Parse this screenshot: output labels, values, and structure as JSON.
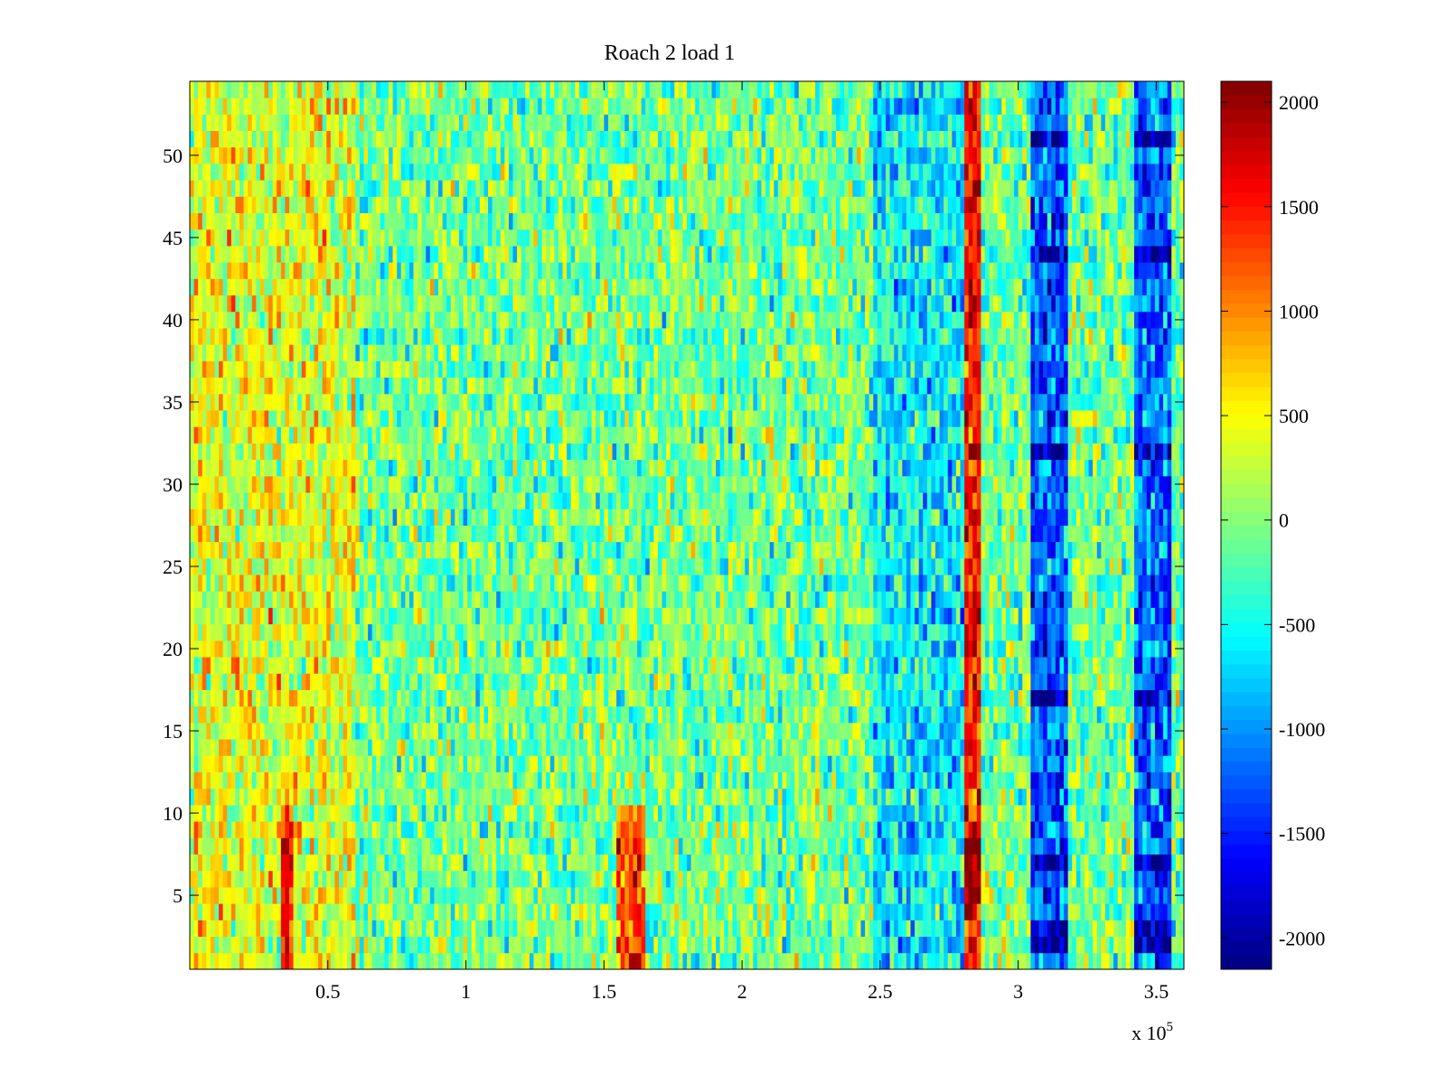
{
  "chart_data": {
    "type": "heatmap",
    "title": "Roach 2 load 1",
    "xlabel": "",
    "ylabel": "",
    "x_exponent_label": "x 10",
    "x_exponent_power": "5",
    "xlim": [
      0,
      360000
    ],
    "ylim": [
      0.5,
      54.5
    ],
    "x_ticks": [
      50000,
      100000,
      150000,
      200000,
      250000,
      300000,
      350000
    ],
    "x_tick_labels": [
      "0.5",
      "1",
      "1.5",
      "2",
      "2.5",
      "3",
      "3.5"
    ],
    "y_ticks": [
      5,
      10,
      15,
      20,
      25,
      30,
      35,
      40,
      45,
      50
    ],
    "y_tick_labels": [
      "5",
      "10",
      "15",
      "20",
      "25",
      "30",
      "35",
      "40",
      "45",
      "50"
    ],
    "rows": 54,
    "colormap": "jet",
    "clim": [
      -2150,
      2100
    ],
    "colorbar_ticks": [
      2000,
      1500,
      1000,
      500,
      0,
      -500,
      -1000,
      -1500,
      -2000
    ],
    "colorbar_tick_labels": [
      "2000",
      "1500",
      "1000",
      "500",
      "0",
      "-500",
      "-1000",
      "-1500",
      "-2000"
    ],
    "grid": false,
    "features": [
      {
        "x_range": [
          0,
          60000
        ],
        "rows": "all",
        "typical_value": 400,
        "description_value": "warm band"
      },
      {
        "x_range": [
          33000,
          38000
        ],
        "rows": [
          1,
          10
        ],
        "typical_value": 1500
      },
      {
        "x_range": [
          155000,
          165000
        ],
        "rows": [
          1,
          10
        ],
        "typical_value": 1300
      },
      {
        "x_range": [
          280000,
          287000
        ],
        "rows": [
          1,
          54
        ],
        "typical_value": 1500
      },
      {
        "x_range": [
          305000,
          318000
        ],
        "rows": [
          1,
          54
        ],
        "typical_value": -1200
      },
      {
        "x_range": [
          342000,
          355000
        ],
        "rows": [
          1,
          54
        ],
        "typical_value": -1200
      },
      {
        "x_range": [
          248000,
          280000
        ],
        "rows": "all",
        "typical_value": -600
      }
    ],
    "strong_cells": [
      {
        "x_range": [
          305000,
          318000
        ],
        "rows": [
          2,
          3
        ],
        "value": -2000
      },
      {
        "x_range": [
          305000,
          318000
        ],
        "rows": [
          7,
          7
        ],
        "value": -2000
      },
      {
        "x_range": [
          305000,
          318000
        ],
        "rows": [
          17,
          17
        ],
        "value": -1900
      },
      {
        "x_range": [
          305000,
          318000
        ],
        "rows": [
          32,
          32
        ],
        "value": -1900
      },
      {
        "x_range": [
          305000,
          318000
        ],
        "rows": [
          44,
          44
        ],
        "value": -1900
      },
      {
        "x_range": [
          305000,
          318000
        ],
        "rows": [
          51,
          51
        ],
        "value": -2000
      },
      {
        "x_range": [
          342000,
          355000
        ],
        "rows": [
          2,
          3
        ],
        "value": -2000
      },
      {
        "x_range": [
          342000,
          355000
        ],
        "rows": [
          7,
          7
        ],
        "value": -1900
      },
      {
        "x_range": [
          342000,
          355000
        ],
        "rows": [
          17,
          17
        ],
        "value": -1900
      },
      {
        "x_range": [
          342000,
          355000
        ],
        "rows": [
          32,
          32
        ],
        "value": -1900
      },
      {
        "x_range": [
          342000,
          355000
        ],
        "rows": [
          44,
          44
        ],
        "value": -1900
      },
      {
        "x_range": [
          342000,
          355000
        ],
        "rows": [
          51,
          51
        ],
        "value": -2000
      },
      {
        "x_range": [
          280000,
          287000
        ],
        "rows": [
          5,
          8
        ],
        "value": 2050
      },
      {
        "x_range": [
          33000,
          38000
        ],
        "rows": [
          7,
          7
        ],
        "value": 1900
      }
    ]
  }
}
